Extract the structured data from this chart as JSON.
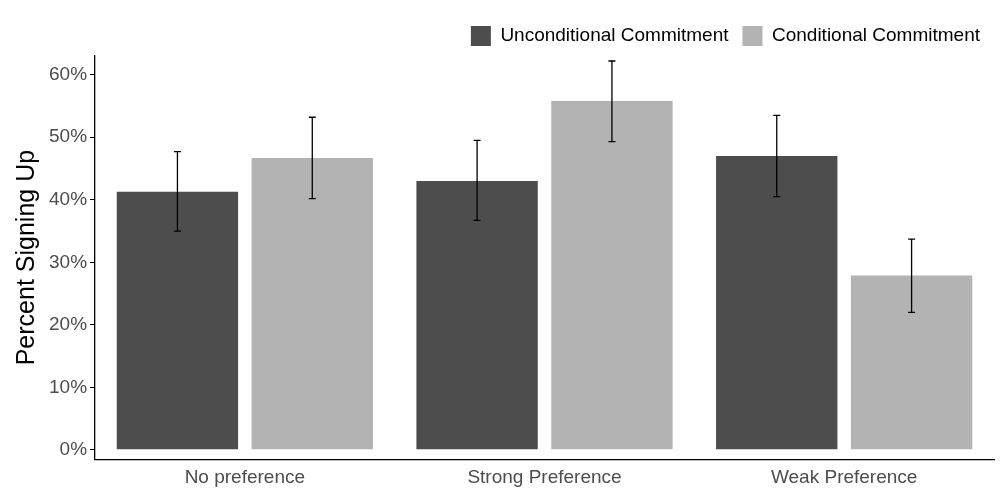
{
  "chart_data": {
    "type": "bar",
    "ylabel": "Percent Signing Up",
    "categories": [
      "No preference",
      "Strong Preference",
      "Weak Preference"
    ],
    "series": [
      {
        "name": "Unconditional Commitment",
        "color": "#4d4d4d",
        "values": [
          41.3,
          43.0,
          47.0
        ],
        "errors": [
          [
            35.0,
            47.7
          ],
          [
            36.7,
            49.5
          ],
          [
            40.5,
            53.5
          ]
        ]
      },
      {
        "name": "Conditional Commitment",
        "color": "#b3b3b3",
        "values": [
          46.7,
          55.8,
          27.9
        ],
        "errors": [
          [
            40.2,
            53.2
          ],
          [
            49.3,
            62.2
          ],
          [
            22.0,
            33.7
          ]
        ]
      }
    ],
    "ylim": [
      -1.5,
      63
    ],
    "yticks": [
      {
        "value": 0,
        "label": "0%"
      },
      {
        "value": 10,
        "label": "10%"
      },
      {
        "value": 20,
        "label": "20%"
      },
      {
        "value": 30,
        "label": "30%"
      },
      {
        "value": 40,
        "label": "40%"
      },
      {
        "value": 50,
        "label": "50%"
      },
      {
        "value": 60,
        "label": "60%"
      }
    ],
    "grid": false,
    "legend": "top"
  }
}
